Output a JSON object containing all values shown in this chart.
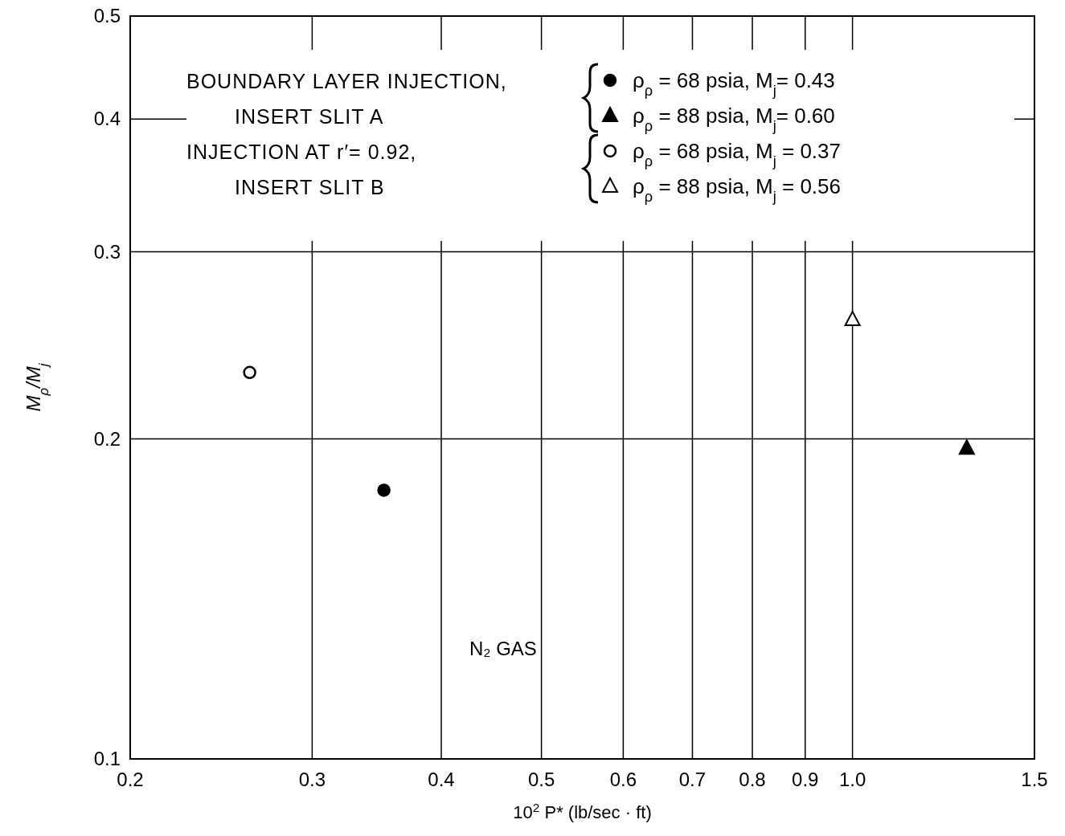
{
  "chart_data": {
    "type": "scatter",
    "log": "xy",
    "grid": true,
    "legend": "top",
    "xlabel": "10$^{2}$ P* (lb/sec · ft)",
    "ylabel": "M$_{ρ}$/M$_{j}$",
    "xlim": [
      0.2,
      1.5
    ],
    "ylim": [
      0.1,
      0.5
    ],
    "xticks": [
      0.2,
      0.3,
      0.4,
      0.5,
      0.6,
      0.7,
      0.8,
      0.9,
      {
        "value": 1,
        "label": "1.0"
      },
      1.5
    ],
    "yticks": [
      0.1,
      0.2,
      0.3,
      0.4,
      0.5
    ],
    "annotations": [
      "BOUNDARY LAYER INJECTION,\nINSERT SLIT A",
      "INJECTION AT r′= 0.92,\nINSERT SLIT B",
      "N₂ GAS"
    ],
    "series": [
      {
        "name": "ρ$_{ρ}$ = 68 psia, M$_{j}$= 0.43",
        "color": "#000000",
        "marker": "circle",
        "x": [
          0.352
        ],
        "values": [
          0.179
        ]
      },
      {
        "name": "ρ$_{ρ}$ = 88 psia, M$_{j}$= 0.60",
        "color": "#000000",
        "marker": "triangle",
        "x": [
          1.29
        ],
        "values": [
          0.196
        ]
      },
      {
        "name": "ρ$_{ρ}$ = 68 psia, M$_{j}$ = 0.37",
        "color": "#ffffff",
        "marker": "circle",
        "x": [
          0.261
        ],
        "values": [
          0.231
        ]
      },
      {
        "name": "ρ$_{ρ}$ = 88 psia, M$_{j}$ = 0.56",
        "color": "#ffffff",
        "marker": "triangle",
        "x": [
          1.0
        ],
        "values": [
          0.259
        ]
      }
    ]
  }
}
